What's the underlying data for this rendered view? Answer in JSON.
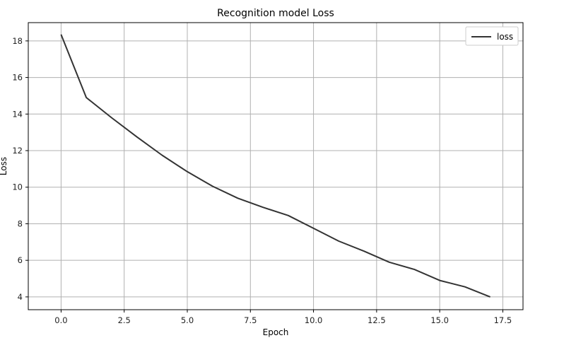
{
  "chart_data": {
    "type": "line",
    "title": "Recognition model Loss",
    "xlabel": "Epoch",
    "ylabel": "Loss",
    "xlim": [
      -1.3,
      18.3
    ],
    "ylim": [
      3.3,
      19.0
    ],
    "xticks": [
      0.0,
      2.5,
      5.0,
      7.5,
      10.0,
      12.5,
      15.0,
      17.5
    ],
    "xtick_labels": [
      "0.0",
      "2.5",
      "5.0",
      "7.5",
      "10.0",
      "12.5",
      "15.0",
      "17.5"
    ],
    "yticks": [
      4,
      6,
      8,
      10,
      12,
      14,
      16,
      18
    ],
    "ytick_labels": [
      "4",
      "6",
      "8",
      "10",
      "12",
      "14",
      "16",
      "18"
    ],
    "grid": true,
    "legend_position": "top-right",
    "series": [
      {
        "name": "loss",
        "color": "#333333",
        "x": [
          0,
          1,
          2,
          3,
          4,
          5,
          6,
          7,
          8,
          9,
          10,
          11,
          12,
          13,
          14,
          15,
          16,
          17
        ],
        "y": [
          18.35,
          14.9,
          13.8,
          12.75,
          11.75,
          10.85,
          10.05,
          9.4,
          8.9,
          8.45,
          7.75,
          7.05,
          6.5,
          5.9,
          5.5,
          4.9,
          4.55,
          4.0
        ]
      }
    ]
  }
}
